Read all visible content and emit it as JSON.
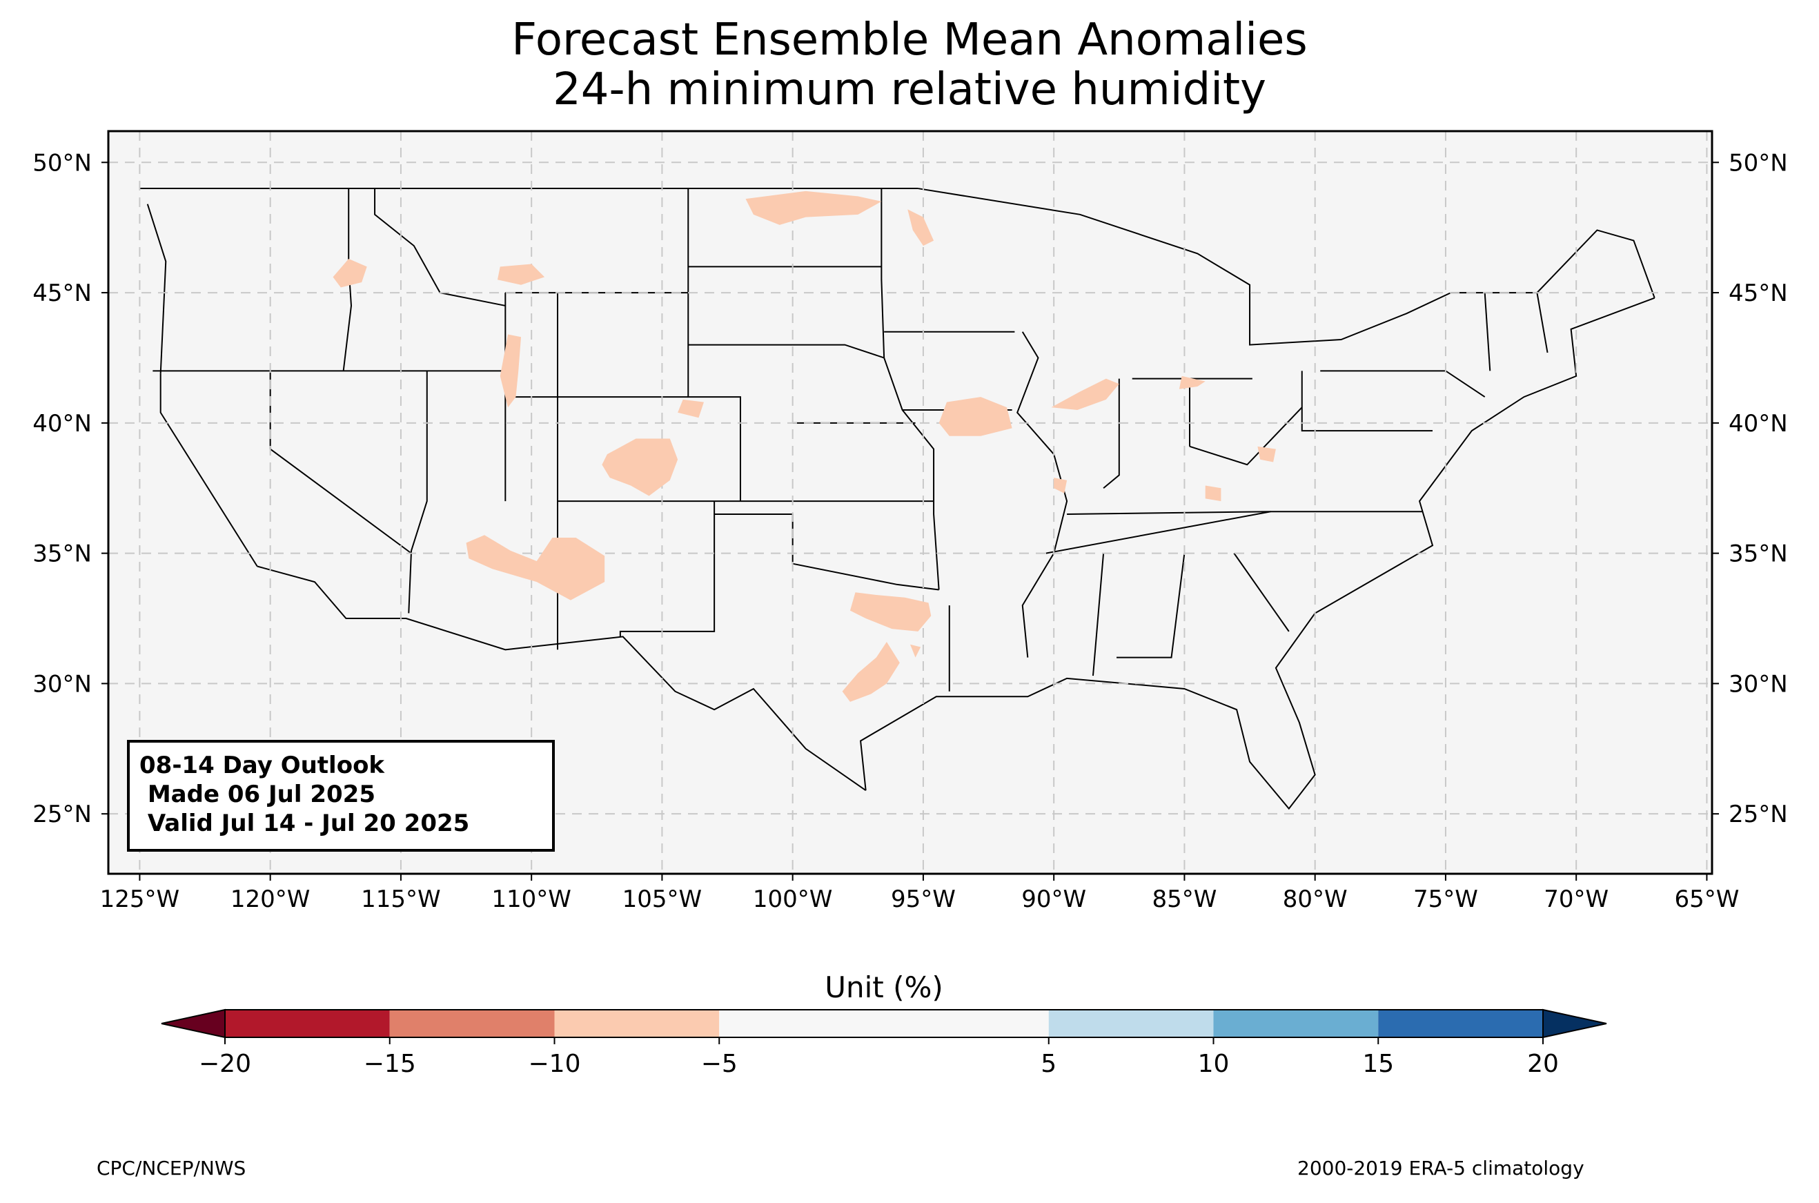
{
  "title": {
    "line1": "Forecast Ensemble Mean Anomalies",
    "line2": "24-h minimum relative humidity"
  },
  "outlook": {
    "line1": "08-14 Day Outlook",
    "line2": " Made 06 Jul 2025",
    "line3": " Valid Jul 14 - Jul 20 2025"
  },
  "footer": {
    "left": "CPC/NCEP/NWS",
    "right": "2000-2019 ERA-5 climatology"
  },
  "map": {
    "lon_range": [
      -126.2,
      -64.8
    ],
    "lat_range": [
      22.7,
      51.2
    ],
    "lon_ticks": [
      {
        "value": -125,
        "label": "125°W"
      },
      {
        "value": -120,
        "label": "120°W"
      },
      {
        "value": -115,
        "label": "115°W"
      },
      {
        "value": -110,
        "label": "110°W"
      },
      {
        "value": -105,
        "label": "105°W"
      },
      {
        "value": -100,
        "label": "100°W"
      },
      {
        "value": -95,
        "label": "95°W"
      },
      {
        "value": -90,
        "label": "90°W"
      },
      {
        "value": -85,
        "label": "85°W"
      },
      {
        "value": -80,
        "label": "80°W"
      },
      {
        "value": -75,
        "label": "75°W"
      },
      {
        "value": -70,
        "label": "70°W"
      },
      {
        "value": -65,
        "label": "65°W"
      }
    ],
    "lat_ticks": [
      {
        "value": 25,
        "label": "25°N"
      },
      {
        "value": 30,
        "label": "30°N"
      },
      {
        "value": 35,
        "label": "35°N"
      },
      {
        "value": 40,
        "label": "40°N"
      },
      {
        "value": 45,
        "label": "45°N"
      },
      {
        "value": 50,
        "label": "50°N"
      }
    ],
    "land_color": "#f5f5f5",
    "anomaly_color": "#fbcbb0",
    "anomaly_regions": [
      {
        "name": "north-dakota-north",
        "points": [
          [
            -101.8,
            48.6
          ],
          [
            -99.5,
            48.9
          ],
          [
            -97.5,
            48.7
          ],
          [
            -96.6,
            48.5
          ],
          [
            -97.5,
            48.0
          ],
          [
            -99.5,
            47.9
          ],
          [
            -100.5,
            47.6
          ],
          [
            -101.5,
            48.0
          ]
        ]
      },
      {
        "name": "minnesota-west",
        "points": [
          [
            -95.6,
            48.2
          ],
          [
            -95.0,
            47.9
          ],
          [
            -94.6,
            47.0
          ],
          [
            -95.0,
            46.8
          ],
          [
            -95.4,
            47.4
          ]
        ]
      },
      {
        "name": "idaho-north",
        "points": [
          [
            -117.0,
            46.3
          ],
          [
            -116.3,
            46.0
          ],
          [
            -116.5,
            45.4
          ],
          [
            -117.3,
            45.2
          ],
          [
            -117.6,
            45.6
          ]
        ]
      },
      {
        "name": "montana-central",
        "points": [
          [
            -111.2,
            46.0
          ],
          [
            -110.0,
            46.1
          ],
          [
            -109.5,
            45.6
          ],
          [
            -110.4,
            45.3
          ],
          [
            -111.3,
            45.5
          ]
        ]
      },
      {
        "name": "wyoming-west",
        "points": [
          [
            -110.9,
            43.4
          ],
          [
            -110.4,
            43.3
          ],
          [
            -110.5,
            42.0
          ],
          [
            -110.6,
            41.0
          ],
          [
            -110.9,
            40.6
          ],
          [
            -111.2,
            41.8
          ]
        ]
      },
      {
        "name": "nebraska-southwest",
        "points": [
          [
            -104.2,
            40.9
          ],
          [
            -103.4,
            40.8
          ],
          [
            -103.6,
            40.2
          ],
          [
            -104.4,
            40.4
          ]
        ]
      },
      {
        "name": "colorado-central",
        "points": [
          [
            -107.1,
            38.8
          ],
          [
            -106.0,
            39.4
          ],
          [
            -104.7,
            39.4
          ],
          [
            -104.4,
            38.6
          ],
          [
            -104.7,
            37.8
          ],
          [
            -105.5,
            37.2
          ],
          [
            -106.2,
            37.6
          ],
          [
            -107.0,
            37.9
          ],
          [
            -107.3,
            38.4
          ]
        ]
      },
      {
        "name": "arizona-new-mexico",
        "points": [
          [
            -112.5,
            35.4
          ],
          [
            -111.8,
            35.7
          ],
          [
            -110.8,
            35.1
          ],
          [
            -109.8,
            34.7
          ],
          [
            -109.2,
            35.6
          ],
          [
            -108.3,
            35.6
          ],
          [
            -107.2,
            34.9
          ],
          [
            -107.2,
            33.9
          ],
          [
            -108.5,
            33.2
          ],
          [
            -109.8,
            33.9
          ],
          [
            -111.5,
            34.4
          ],
          [
            -112.4,
            34.8
          ]
        ]
      },
      {
        "name": "texas-north-oklahoma",
        "points": [
          [
            -97.6,
            33.5
          ],
          [
            -96.8,
            33.4
          ],
          [
            -95.7,
            33.3
          ],
          [
            -94.8,
            33.1
          ],
          [
            -94.7,
            32.6
          ],
          [
            -95.2,
            32.0
          ],
          [
            -96.2,
            32.1
          ],
          [
            -97.2,
            32.5
          ],
          [
            -97.8,
            32.8
          ]
        ]
      },
      {
        "name": "texas-central",
        "points": [
          [
            -96.4,
            31.6
          ],
          [
            -95.9,
            30.8
          ],
          [
            -96.4,
            30.0
          ],
          [
            -97.0,
            29.6
          ],
          [
            -97.8,
            29.3
          ],
          [
            -98.1,
            29.7
          ],
          [
            -97.5,
            30.4
          ],
          [
            -96.8,
            31.0
          ]
        ]
      },
      {
        "name": "texas-east-spot",
        "points": [
          [
            -95.5,
            31.5
          ],
          [
            -95.1,
            31.4
          ],
          [
            -95.3,
            31.0
          ]
        ]
      },
      {
        "name": "missouri-iowa",
        "points": [
          [
            -94.1,
            40.8
          ],
          [
            -92.8,
            41.0
          ],
          [
            -91.8,
            40.6
          ],
          [
            -91.6,
            39.8
          ],
          [
            -92.8,
            39.5
          ],
          [
            -94.0,
            39.5
          ],
          [
            -94.4,
            40.0
          ]
        ]
      },
      {
        "name": "illinois-central",
        "points": [
          [
            -90.1,
            40.6
          ],
          [
            -89.0,
            41.2
          ],
          [
            -88.0,
            41.7
          ],
          [
            -87.5,
            41.5
          ],
          [
            -88.0,
            40.9
          ],
          [
            -89.1,
            40.5
          ]
        ]
      },
      {
        "name": "indiana-ohio",
        "points": [
          [
            -85.1,
            41.8
          ],
          [
            -84.2,
            41.6
          ],
          [
            -84.5,
            41.4
          ],
          [
            -85.2,
            41.3
          ]
        ]
      },
      {
        "name": "kentucky-west",
        "points": [
          [
            -90.0,
            37.9
          ],
          [
            -89.5,
            37.8
          ],
          [
            -89.6,
            37.3
          ],
          [
            -90.0,
            37.5
          ]
        ]
      },
      {
        "name": "kentucky-east",
        "points": [
          [
            -84.2,
            37.6
          ],
          [
            -83.6,
            37.5
          ],
          [
            -83.6,
            37.0
          ],
          [
            -84.2,
            37.1
          ]
        ]
      },
      {
        "name": "west-virginia",
        "points": [
          [
            -82.2,
            39.1
          ],
          [
            -81.5,
            39.0
          ],
          [
            -81.6,
            38.5
          ],
          [
            -82.1,
            38.6
          ]
        ]
      }
    ]
  },
  "colorbar": {
    "label": "Unit (%)",
    "min_color": "#67001f",
    "max_color": "#053061",
    "bins": [
      {
        "from": -20,
        "to": -15,
        "color": "#b2182b"
      },
      {
        "from": -15,
        "to": -10,
        "color": "#e0806a"
      },
      {
        "from": -10,
        "to": -5,
        "color": "#fbcbb0"
      },
      {
        "from": -5,
        "to": 5,
        "color": "#f7f7f7"
      },
      {
        "from": 5,
        "to": 10,
        "color": "#bfdceb"
      },
      {
        "from": 10,
        "to": 15,
        "color": "#6aaed2"
      },
      {
        "from": 15,
        "to": 20,
        "color": "#2b6cb0"
      }
    ],
    "ticks": [
      {
        "value": -20,
        "label": "−20"
      },
      {
        "value": -15,
        "label": "−15"
      },
      {
        "value": -10,
        "label": "−10"
      },
      {
        "value": -5,
        "label": "−5"
      },
      {
        "value": 5,
        "label": "5"
      },
      {
        "value": 10,
        "label": "10"
      },
      {
        "value": 15,
        "label": "15"
      },
      {
        "value": 20,
        "label": "20"
      }
    ]
  }
}
